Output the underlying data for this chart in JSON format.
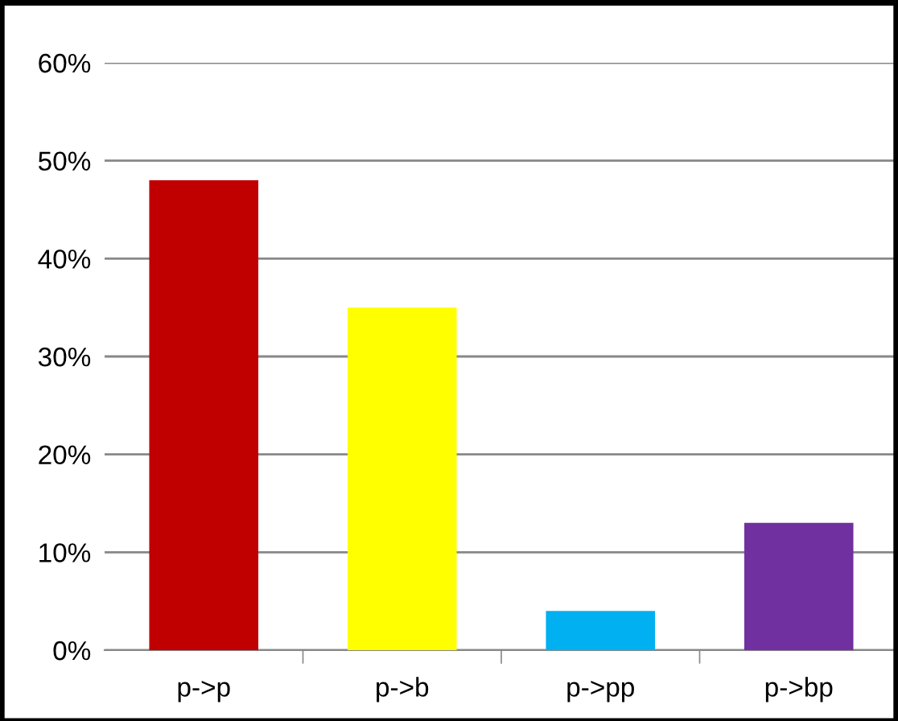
{
  "chart_data": {
    "type": "bar",
    "categories": [
      "p->p",
      "p->b",
      "p->pp",
      "p->bp"
    ],
    "values": [
      48,
      35,
      4,
      13
    ],
    "colors": [
      "#c00000",
      "#ffff00",
      "#00b0f0",
      "#7030a0"
    ],
    "ylim": [
      0,
      60
    ],
    "yticks": [
      {
        "value": 0,
        "label": "0%"
      },
      {
        "value": 10,
        "label": "10%"
      },
      {
        "value": 20,
        "label": "20%"
      },
      {
        "value": 30,
        "label": "30%"
      },
      {
        "value": 40,
        "label": "40%"
      },
      {
        "value": 50,
        "label": "50%"
      },
      {
        "value": 60,
        "label": "60%"
      }
    ],
    "grid": "y",
    "legend": false
  }
}
